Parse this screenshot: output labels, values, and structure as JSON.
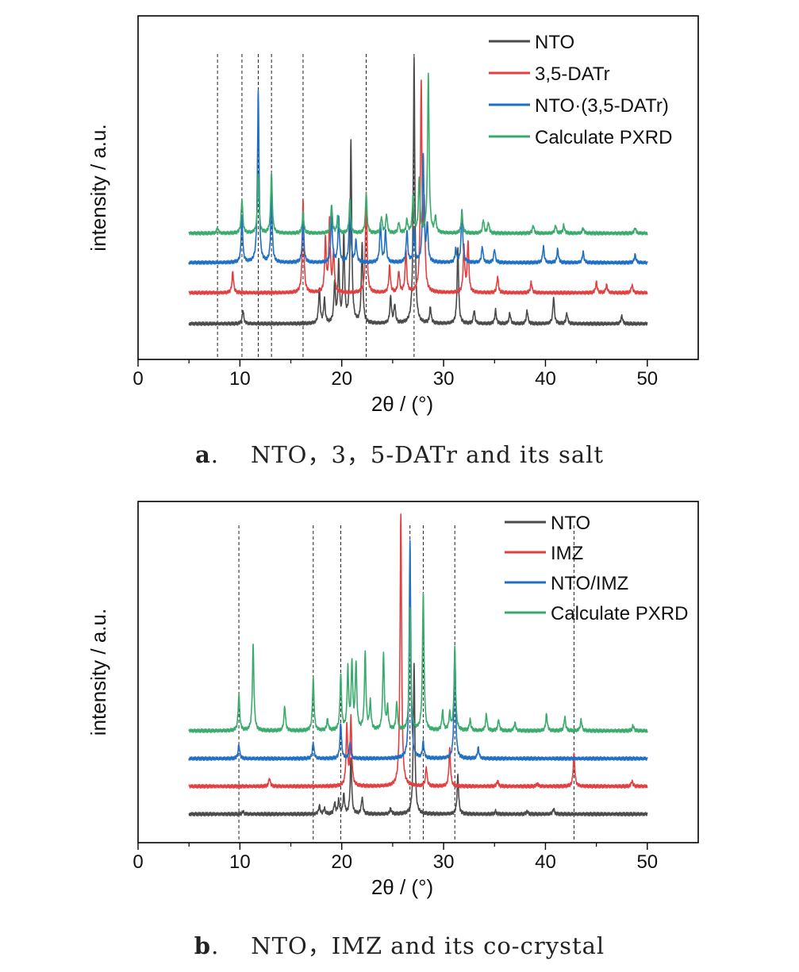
{
  "chart_data": [
    {
      "type": "line",
      "panel_label": "a",
      "caption": "NTO，3，5-DATr and its salt",
      "xlabel": "2θ / (°)",
      "ylabel": "intensity / a.u.",
      "xlim": [
        0,
        55
      ],
      "xticks": [
        0,
        10,
        20,
        30,
        40,
        50
      ],
      "y_ticks_shown": false,
      "legend_position": "top-right",
      "reference_lines_2theta": [
        7.8,
        10.2,
        11.8,
        13.1,
        16.2,
        22.4,
        27.1
      ],
      "series": [
        {
          "name": "NTO",
          "color": "#4a4a4a",
          "offset": 0,
          "peaks": [
            [
              10.3,
              0.05
            ],
            [
              17.8,
              0.13
            ],
            [
              18.3,
              0.09
            ],
            [
              19.3,
              0.15
            ],
            [
              19.7,
              0.22
            ],
            [
              20.2,
              0.32
            ],
            [
              20.9,
              0.68
            ],
            [
              22.0,
              0.3
            ],
            [
              24.8,
              0.1
            ],
            [
              25.2,
              0.07
            ],
            [
              27.1,
              1.0
            ],
            [
              28.7,
              0.06
            ],
            [
              31.4,
              0.28
            ],
            [
              33.0,
              0.05
            ],
            [
              35.1,
              0.05
            ],
            [
              36.5,
              0.04
            ],
            [
              38.2,
              0.05
            ],
            [
              40.8,
              0.1
            ],
            [
              42.1,
              0.04
            ],
            [
              47.5,
              0.03
            ]
          ]
        },
        {
          "name": "3,5-DATr",
          "color": "#e24040",
          "offset": 1,
          "peaks": [
            [
              9.3,
              0.08
            ],
            [
              16.2,
              0.35
            ],
            [
              18.4,
              0.2
            ],
            [
              18.8,
              0.27
            ],
            [
              19.2,
              0.15
            ],
            [
              22.4,
              0.38
            ],
            [
              24.7,
              0.1
            ],
            [
              25.6,
              0.08
            ],
            [
              26.3,
              0.16
            ],
            [
              27.8,
              0.78
            ],
            [
              28.1,
              0.3
            ],
            [
              32.0,
              0.17
            ],
            [
              32.4,
              0.19
            ],
            [
              35.3,
              0.06
            ],
            [
              38.6,
              0.04
            ],
            [
              45.0,
              0.04
            ],
            [
              46.0,
              0.03
            ],
            [
              48.5,
              0.03
            ]
          ]
        },
        {
          "name": "NTO·(3,5-DATr)",
          "color": "#1f6fc4",
          "offset": 2,
          "peaks": [
            [
              10.2,
              0.17
            ],
            [
              11.8,
              0.65
            ],
            [
              13.1,
              0.25
            ],
            [
              16.2,
              0.17
            ],
            [
              19.0,
              0.19
            ],
            [
              19.7,
              0.17
            ],
            [
              20.8,
              0.24
            ],
            [
              21.4,
              0.08
            ],
            [
              23.8,
              0.15
            ],
            [
              24.3,
              0.12
            ],
            [
              26.4,
              0.12
            ],
            [
              27.1,
              0.12
            ],
            [
              28.0,
              0.4
            ],
            [
              28.4,
              0.14
            ],
            [
              31.2,
              0.05
            ],
            [
              31.8,
              0.2
            ],
            [
              33.8,
              0.06
            ],
            [
              35.0,
              0.05
            ],
            [
              39.8,
              0.06
            ],
            [
              41.2,
              0.05
            ],
            [
              43.7,
              0.04
            ],
            [
              48.8,
              0.03
            ]
          ]
        },
        {
          "name": "Calculate PXRD",
          "color": "#3aab6c",
          "offset": 3,
          "peaks": [
            [
              7.8,
              0.02
            ],
            [
              10.2,
              0.13
            ],
            [
              11.8,
              0.22
            ],
            [
              13.1,
              0.23
            ],
            [
              16.2,
              0.08
            ],
            [
              19.0,
              0.11
            ],
            [
              19.6,
              0.06
            ],
            [
              20.8,
              0.12
            ],
            [
              22.4,
              0.15
            ],
            [
              23.9,
              0.06
            ],
            [
              24.4,
              0.07
            ],
            [
              25.6,
              0.04
            ],
            [
              26.4,
              0.05
            ],
            [
              27.0,
              0.14
            ],
            [
              27.6,
              0.2
            ],
            [
              28.5,
              0.6
            ],
            [
              29.2,
              0.06
            ],
            [
              31.8,
              0.08
            ],
            [
              33.9,
              0.05
            ],
            [
              34.4,
              0.04
            ],
            [
              38.8,
              0.03
            ],
            [
              41.0,
              0.03
            ],
            [
              41.8,
              0.03
            ],
            [
              43.7,
              0.02
            ],
            [
              48.8,
              0.02
            ]
          ]
        }
      ]
    },
    {
      "type": "line",
      "panel_label": "b",
      "caption": "NTO，IMZ and its co-crystal",
      "xlabel": "2θ / (°)",
      "ylabel": "intensity / a.u.",
      "xlim": [
        0,
        55
      ],
      "xticks": [
        0,
        10,
        20,
        30,
        40,
        50
      ],
      "y_ticks_shown": false,
      "legend_position": "top-right",
      "reference_lines_2theta": [
        9.9,
        17.2,
        19.9,
        26.7,
        28.0,
        31.1,
        42.8
      ],
      "series": [
        {
          "name": "NTO",
          "color": "#4a4a4a",
          "offset": 0,
          "peaks": [
            [
              10.3,
              0.01
            ],
            [
              17.8,
              0.03
            ],
            [
              18.3,
              0.02
            ],
            [
              19.3,
              0.04
            ],
            [
              19.7,
              0.05
            ],
            [
              20.2,
              0.07
            ],
            [
              20.9,
              0.2
            ],
            [
              22.0,
              0.06
            ],
            [
              24.8,
              0.02
            ],
            [
              27.1,
              0.55
            ],
            [
              31.4,
              0.14
            ],
            [
              35.1,
              0.01
            ],
            [
              38.2,
              0.01
            ],
            [
              40.8,
              0.02
            ]
          ]
        },
        {
          "name": "IMZ",
          "color": "#e24040",
          "offset": 1,
          "peaks": [
            [
              12.9,
              0.03
            ],
            [
              20.5,
              0.22
            ],
            [
              20.9,
              0.25
            ],
            [
              25.8,
              1.0
            ],
            [
              28.3,
              0.07
            ],
            [
              30.6,
              0.14
            ],
            [
              35.3,
              0.02
            ],
            [
              39.2,
              0.01
            ],
            [
              42.8,
              0.12
            ],
            [
              48.5,
              0.02
            ]
          ]
        },
        {
          "name": "NTO/IMZ",
          "color": "#1f6fc4",
          "offset": 2,
          "peaks": [
            [
              9.9,
              0.05
            ],
            [
              17.2,
              0.06
            ],
            [
              19.9,
              0.13
            ],
            [
              20.8,
              0.06
            ],
            [
              26.7,
              0.8
            ],
            [
              28.0,
              0.06
            ],
            [
              31.1,
              0.4
            ],
            [
              33.4,
              0.04
            ]
          ]
        },
        {
          "name": "Calculate PXRD",
          "color": "#3aab6c",
          "offset": 3,
          "peaks": [
            [
              9.9,
              0.13
            ],
            [
              11.3,
              0.31
            ],
            [
              14.4,
              0.09
            ],
            [
              17.2,
              0.19
            ],
            [
              18.6,
              0.04
            ],
            [
              19.9,
              0.2
            ],
            [
              20.6,
              0.22
            ],
            [
              21.0,
              0.24
            ],
            [
              21.4,
              0.24
            ],
            [
              22.3,
              0.28
            ],
            [
              22.8,
              0.1
            ],
            [
              24.1,
              0.28
            ],
            [
              24.5,
              0.08
            ],
            [
              25.4,
              0.1
            ],
            [
              26.7,
              0.44
            ],
            [
              28.0,
              0.5
            ],
            [
              29.9,
              0.07
            ],
            [
              30.6,
              0.06
            ],
            [
              31.1,
              0.3
            ],
            [
              32.6,
              0.04
            ],
            [
              34.2,
              0.06
            ],
            [
              35.4,
              0.04
            ],
            [
              37.0,
              0.03
            ],
            [
              40.1,
              0.06
            ],
            [
              41.9,
              0.05
            ],
            [
              43.5,
              0.04
            ],
            [
              48.6,
              0.02
            ]
          ]
        }
      ]
    }
  ]
}
